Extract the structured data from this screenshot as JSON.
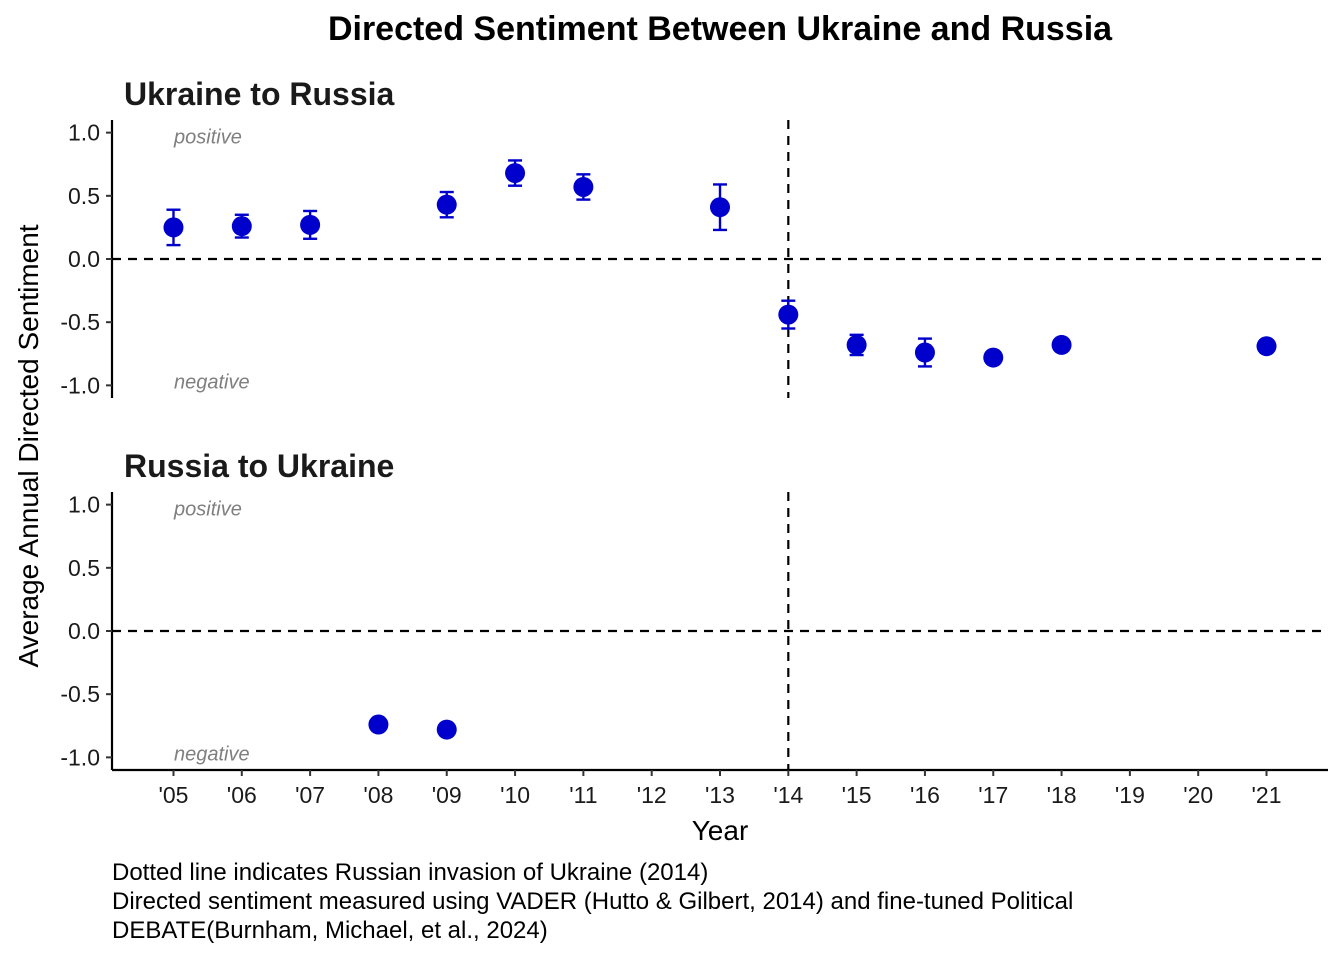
{
  "chart_data": {
    "type": "scatter",
    "title": "Directed Sentiment Between Ukraine and Russia",
    "xlabel": "Year",
    "ylabel": "Average Annual Directed Sentiment",
    "x_tick_labels": [
      "'05",
      "'06",
      "'07",
      "'08",
      "'09",
      "'10",
      "'11",
      "'12",
      "'13",
      "'14",
      "'15",
      "'16",
      "'17",
      "'18",
      "'19",
      "'20",
      "'21"
    ],
    "x_ticks": [
      2005,
      2006,
      2007,
      2008,
      2009,
      2010,
      2011,
      2012,
      2013,
      2014,
      2015,
      2016,
      2017,
      2018,
      2019,
      2020,
      2021
    ],
    "xlim": [
      2004.1,
      2021.9
    ],
    "ylim": [
      -1.1,
      1.1
    ],
    "y_tick_labels": [
      "1.0",
      "0.5",
      "0.0",
      "-0.5",
      "-1.0"
    ],
    "y_ticks": [
      1.0,
      0.5,
      0.0,
      -0.5,
      -1.0
    ],
    "reference_lines": {
      "y": 0.0,
      "x": 2014
    },
    "region_labels": {
      "positive": "positive",
      "negative": "negative"
    },
    "point_color": "#0000CD",
    "grid": false,
    "panels": [
      {
        "title": "Ukraine to Russia",
        "points": [
          {
            "x": 2005,
            "y": 0.25,
            "lower": 0.11,
            "upper": 0.39
          },
          {
            "x": 2006,
            "y": 0.26,
            "lower": 0.17,
            "upper": 0.35
          },
          {
            "x": 2007,
            "y": 0.27,
            "lower": 0.16,
            "upper": 0.38
          },
          {
            "x": 2009,
            "y": 0.43,
            "lower": 0.33,
            "upper": 0.53
          },
          {
            "x": 2010,
            "y": 0.68,
            "lower": 0.58,
            "upper": 0.78
          },
          {
            "x": 2011,
            "y": 0.57,
            "lower": 0.47,
            "upper": 0.67
          },
          {
            "x": 2013,
            "y": 0.41,
            "lower": 0.23,
            "upper": 0.59
          },
          {
            "x": 2014,
            "y": -0.44,
            "lower": -0.55,
            "upper": -0.33
          },
          {
            "x": 2015,
            "y": -0.68,
            "lower": -0.76,
            "upper": -0.6
          },
          {
            "x": 2016,
            "y": -0.74,
            "lower": -0.85,
            "upper": -0.63
          },
          {
            "x": 2017,
            "y": -0.78,
            "lower": -0.82,
            "upper": -0.74
          },
          {
            "x": 2018,
            "y": -0.68,
            "lower": -0.7,
            "upper": -0.66
          },
          {
            "x": 2021,
            "y": -0.69,
            "lower": -0.71,
            "upper": -0.67
          }
        ]
      },
      {
        "title": "Russia to Ukraine",
        "points": [
          {
            "x": 2008,
            "y": -0.74,
            "lower": -0.76,
            "upper": -0.72
          },
          {
            "x": 2009,
            "y": -0.78,
            "lower": -0.8,
            "upper": -0.76
          }
        ]
      }
    ],
    "caption": [
      "Dotted line indicates Russian invasion of Ukraine (2014)",
      "Directed sentiment measured using VADER (Hutto & Gilbert, 2014) and fine-tuned Political",
      "DEBATE(Burnham, Michael, et al., 2024)"
    ]
  }
}
